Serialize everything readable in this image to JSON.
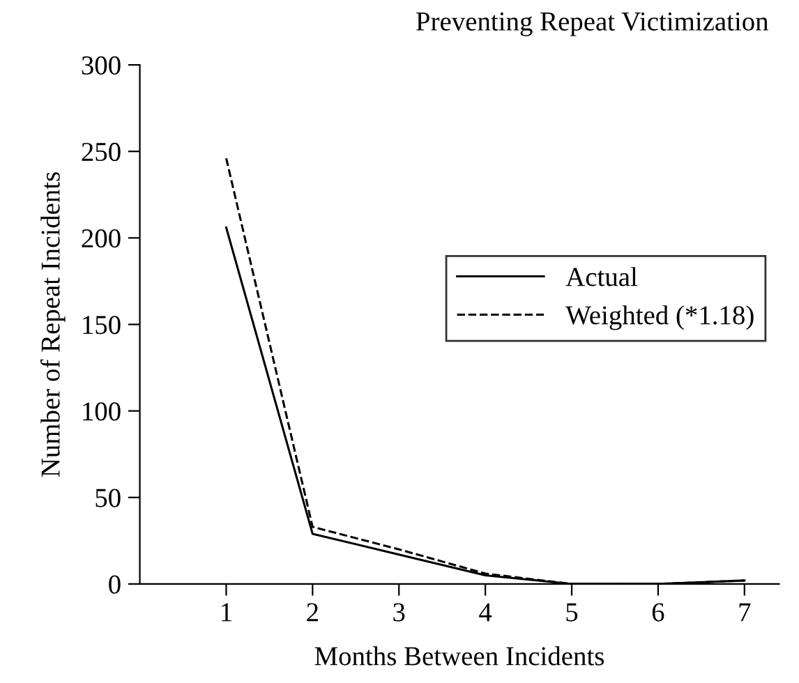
{
  "chart_data": {
    "type": "line",
    "xlabel": "Months Between Incidents",
    "ylabel": "Number of Repeat Incidents",
    "annotations": [
      "Preventing Repeat Victimization"
    ],
    "x": [
      1,
      2,
      3,
      4,
      5,
      6,
      7
    ],
    "series": [
      {
        "name": "Actual",
        "color": "#000000",
        "line_style": "solid",
        "values": [
          206,
          29,
          17,
          5,
          0,
          0,
          2
        ]
      },
      {
        "name": "Weighted (*1.18)",
        "color": "#000000",
        "line_style": "dashed",
        "values": [
          246,
          33,
          20,
          6,
          0,
          0,
          2
        ]
      }
    ],
    "xlim": [
      0,
      7.4
    ],
    "ylim": [
      0,
      300
    ],
    "xticks": [
      1,
      2,
      3,
      4,
      5,
      6,
      7
    ],
    "yticks": [
      0,
      50,
      100,
      150,
      200,
      250,
      300
    ],
    "legend": "right",
    "grid": false,
    "marker": "none"
  }
}
